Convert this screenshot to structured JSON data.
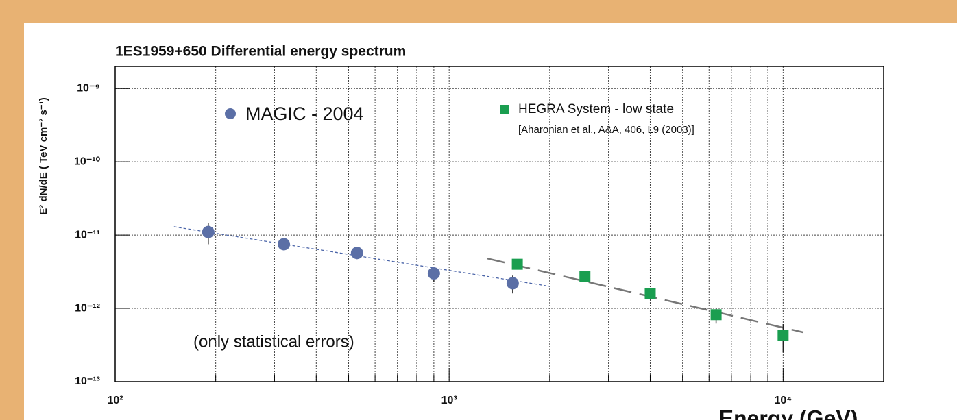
{
  "chart_data": {
    "type": "scatter",
    "title": "1ES1959+650    Differential energy spectrum",
    "x_label": "Energy (GeV)",
    "y_label": "E² dN/dE ( TeV cm⁻² s⁻¹)",
    "annotation": "(only statistical errors)",
    "legend_note": "[Aharonian et al., A&A, 406, L9 (2003)]",
    "log_x": true,
    "log_y": true,
    "grid": true,
    "xlim": [
      100,
      20000
    ],
    "ylim": [
      1e-13,
      2e-09
    ],
    "xticks": [
      {
        "value": 100,
        "label": "10²"
      },
      {
        "value": 1000,
        "label": "10³"
      },
      {
        "value": 10000,
        "label": "10⁴"
      }
    ],
    "xminorticks": [
      200,
      300,
      400,
      500,
      600,
      700,
      800,
      900,
      2000,
      3000,
      4000,
      5000,
      6000,
      7000,
      8000,
      9000
    ],
    "yticks": [
      {
        "value": 1e-09,
        "label": "10⁻⁹"
      },
      {
        "value": 1e-10,
        "label": "10⁻¹⁰"
      },
      {
        "value": 1e-11,
        "label": "10⁻¹¹"
      },
      {
        "value": 1e-12,
        "label": "10⁻¹²"
      },
      {
        "value": 1e-13,
        "label": "10⁻¹³"
      }
    ],
    "series": [
      {
        "name": "MAGIC - 2004",
        "color": "#5b6fa6",
        "marker": "circle",
        "x": [
          190,
          320,
          530,
          900,
          1550
        ],
        "values": [
          1.1e-11,
          7.5e-12,
          5.7e-12,
          3e-12,
          2.2e-12
        ],
        "errors": [
          3.5e-12,
          1.3e-12,
          1e-12,
          7e-13,
          6e-13
        ],
        "fit": {
          "x": [
            150,
            2000
          ],
          "values": [
            1.3e-11,
            2e-12
          ],
          "dash": "4 3"
        }
      },
      {
        "name": "HEGRA System -  low state",
        "color": "#1a9e50",
        "marker": "square",
        "x": [
          1600,
          2550,
          4000,
          6300,
          10000
        ],
        "values": [
          4e-12,
          2.7e-12,
          1.6e-12,
          8.2e-13,
          4.3e-13
        ],
        "errors": [
          2e-13,
          1.5e-13,
          1e-13,
          2e-13,
          1.8e-13
        ],
        "fit": {
          "x": [
            1300,
            11500
          ],
          "values": [
            4.8e-12,
            4.7e-13
          ],
          "dash": "26 12"
        }
      }
    ]
  }
}
